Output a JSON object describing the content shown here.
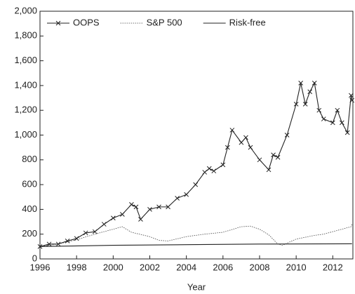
{
  "chart_data": {
    "type": "line",
    "x_label": "Year",
    "xlim": [
      1996,
      2013.1
    ],
    "xticks": [
      1996,
      1998,
      2000,
      2002,
      2004,
      2006,
      2008,
      2010,
      2012
    ],
    "ylim": [
      0,
      2000
    ],
    "yticks": [
      0,
      200,
      400,
      600,
      800,
      {
        "value": 1000,
        "label": "1,000"
      },
      {
        "value": 1200,
        "label": "1,200"
      },
      {
        "value": 1400,
        "label": "1,400"
      },
      {
        "value": 1600,
        "label": "1,600"
      },
      {
        "value": 1800,
        "label": "1,800"
      },
      {
        "value": 2000,
        "label": "2,000"
      }
    ],
    "legend": "upper left",
    "series": [
      {
        "name": "OOPS",
        "color": "#222222",
        "marker": "x",
        "linestyle": "solid",
        "x": [
          1996,
          1996.5,
          1997,
          1997.5,
          1998,
          1998.5,
          1999,
          1999.5,
          2000,
          2000.5,
          2001,
          2001.25,
          2001.5,
          2002,
          2002.5,
          2003,
          2003.5,
          2004,
          2004.5,
          2005,
          2005.25,
          2005.5,
          2006,
          2006.25,
          2006.5,
          2007,
          2007.25,
          2007.5,
          2008,
          2008.5,
          2008.75,
          2009,
          2009.5,
          2010,
          2010.25,
          2010.5,
          2010.75,
          2011,
          2011.25,
          2011.5,
          2012,
          2012.25,
          2012.5,
          2012.8,
          2013,
          2013.05
        ],
        "values": [
          100,
          120,
          120,
          145,
          165,
          210,
          220,
          280,
          330,
          360,
          440,
          420,
          320,
          400,
          420,
          420,
          490,
          520,
          600,
          700,
          730,
          710,
          760,
          900,
          1040,
          940,
          980,
          900,
          800,
          720,
          840,
          820,
          1000,
          1250,
          1420,
          1250,
          1350,
          1420,
          1200,
          1130,
          1100,
          1200,
          1100,
          1020,
          1320,
          1280
        ]
      },
      {
        "name": "S&P 500",
        "color": "#444444",
        "marker": "none",
        "linestyle": "dotted",
        "x": [
          1996,
          1997,
          1998,
          1999,
          2000,
          2000.5,
          2001,
          2002,
          2002.5,
          2003,
          2004,
          2005,
          2006,
          2007,
          2007.5,
          2008,
          2008.5,
          2009,
          2009.25,
          2010,
          2011,
          2011.5,
          2012,
          2013,
          2013.05
        ],
        "values": [
          100,
          120,
          155,
          200,
          240,
          260,
          215,
          180,
          150,
          145,
          180,
          200,
          215,
          260,
          265,
          240,
          195,
          120,
          110,
          160,
          190,
          200,
          220,
          260,
          280
        ]
      },
      {
        "name": "Risk-free",
        "color": "#222222",
        "marker": "none",
        "linestyle": "solid",
        "x": [
          1996,
          2000,
          2004,
          2008,
          2013.05
        ],
        "values": [
          100,
          110,
          115,
          120,
          122
        ]
      }
    ]
  }
}
